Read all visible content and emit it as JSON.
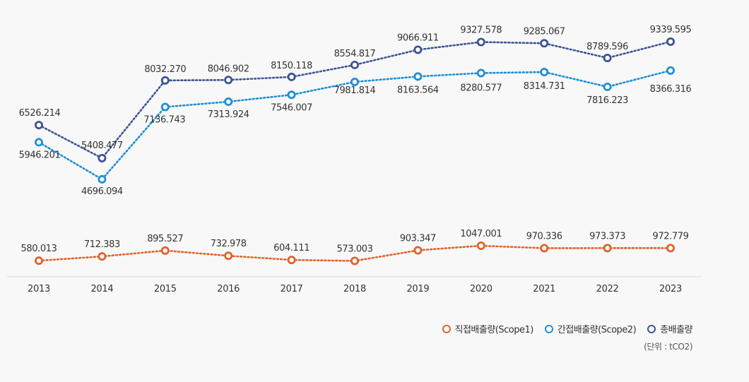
{
  "chart_data": {
    "type": "line",
    "x": [
      "2013",
      "2014",
      "2015",
      "2016",
      "2017",
      "2018",
      "2019",
      "2020",
      "2021",
      "2022",
      "2023"
    ],
    "ylim": [
      0,
      10000
    ],
    "grid": false,
    "legend_position": "bottom-right",
    "series": [
      {
        "name": "직접배출량(Scope1)",
        "color": "#e0622a",
        "values": [
          580.013,
          712.383,
          895.527,
          732.978,
          604.111,
          573.003,
          903.347,
          1047.001,
          970.336,
          973.373,
          972.779
        ],
        "labels": [
          "580.013",
          "712.383",
          "895.527",
          "732.978",
          "604.111",
          "573.003",
          "903.347",
          "1047.001",
          "970.336",
          "973.373",
          "972.779"
        ]
      },
      {
        "name": "간접배출량(Scope2)",
        "color": "#1e8fd6",
        "values": [
          5946.201,
          4696.094,
          7136.743,
          7313.924,
          7546.007,
          7981.814,
          8163.564,
          8280.577,
          8314.731,
          7816.223,
          8366.316
        ],
        "labels": [
          "5946.201",
          "4696.094",
          "7136.743",
          "7313.924",
          "7546.007",
          "7981.814",
          "8163.564",
          "8280.577",
          "8314.731",
          "7816.223",
          "8366.316"
        ]
      },
      {
        "name": "총배출량",
        "color": "#3d5495",
        "values": [
          6526.214,
          5408.477,
          8032.27,
          8046.902,
          8150.118,
          8554.817,
          9066.911,
          9327.578,
          9285.067,
          8789.596,
          9339.595
        ],
        "labels": [
          "6526.214",
          "5408.477",
          "8032.270",
          "8046.902",
          "8150.118",
          "8554.817",
          "9066.911",
          "9327.578",
          "9285.067",
          "8789.596",
          "9339.595"
        ]
      }
    ],
    "unit_note": "(단위 : tCO2)"
  }
}
